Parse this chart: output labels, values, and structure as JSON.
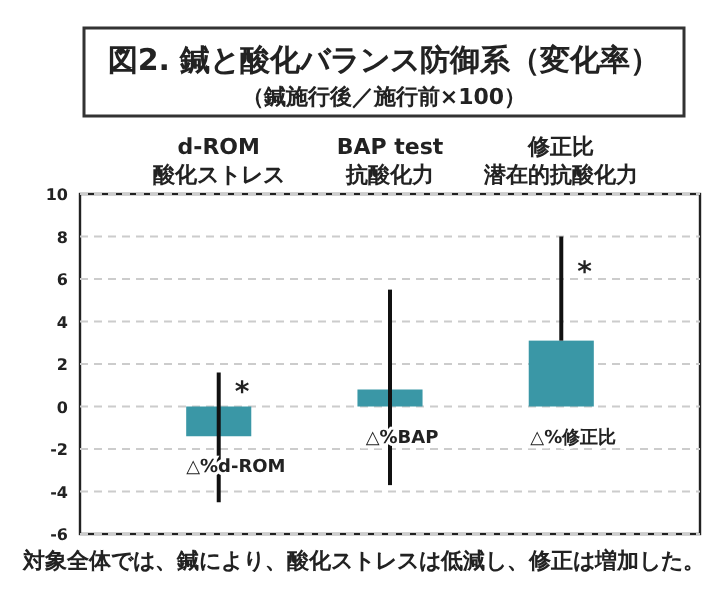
{
  "chart_data": {
    "type": "bar",
    "title": "図2. 鍼と酸化バランス防御系（変化率）",
    "subtitle": "（鍼施行後／施行前×100）",
    "categories": [
      "△%d-ROM",
      "△%BAP",
      "△%修正比"
    ],
    "values": [
      -1.4,
      0.8,
      3.1
    ],
    "color": "#3a97a6",
    "errors": [
      [
        -4.5,
        1.6
      ],
      [
        -3.7,
        5.5
      ],
      [
        3.1,
        8.0
      ]
    ],
    "ylim": [
      -6,
      10
    ],
    "yticks": [
      -6,
      -4,
      -2,
      0,
      2,
      4,
      6,
      8,
      10
    ],
    "grid": "y",
    "annotations": [
      "d-ROM",
      "酸化ストレス",
      "BAP test",
      "抗酸化力",
      "修正比",
      "潜在的抗酸化力",
      "*",
      "*",
      "対象全体では、鍼により、酸化ストレスは低減し、修正は増加した。"
    ]
  }
}
